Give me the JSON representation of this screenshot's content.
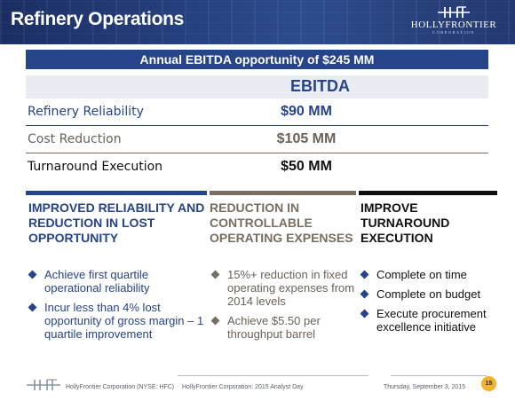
{
  "header": {
    "title": "Refinery Operations",
    "logo_name": "HOLLYFRONTIER",
    "logo_sub": "CORPORATION"
  },
  "banner": "Annual EBITDA opportunity of $245 MM",
  "table": {
    "column_header": "EBITDA",
    "rows": [
      {
        "label": "Refinery Reliability",
        "value": "$90 MM"
      },
      {
        "label": "Cost Reduction",
        "value": "$105 MM"
      },
      {
        "label": "Turnaround Execution",
        "value": "$50 MM"
      }
    ]
  },
  "columns": [
    {
      "heading": "IMPROVED RELIABILITY AND REDUCTION IN LOST OPPORTUNITY",
      "bullets": [
        "Achieve first quartile operational reliability",
        "Incur less than 4% lost opportunity of gross margin – 1 quartile improvement"
      ]
    },
    {
      "heading": "REDUCTION IN CONTROLLABLE OPERATING EXPENSES",
      "bullets": [
        "15%+ reduction in fixed operating expenses from 2014 levels",
        "Achieve $5.50 per throughput barrel"
      ]
    },
    {
      "heading": "IMPROVE TURNAROUND EXECUTION",
      "bullets": [
        "Complete on time",
        "Complete on budget",
        "Execute procurement excellence initiative"
      ]
    }
  ],
  "footer": {
    "company": "HollyFrontier Corporation (NYSE: HFC)",
    "event": "HollyFrontier Corporation: 2015 Analyst Day",
    "date": "Thursday, September 3, 2015",
    "page": "15"
  },
  "colors": {
    "brand_blue": "#26448a",
    "taupe": "#7a6e62",
    "black": "#111111",
    "badge": "#f1b22c"
  }
}
